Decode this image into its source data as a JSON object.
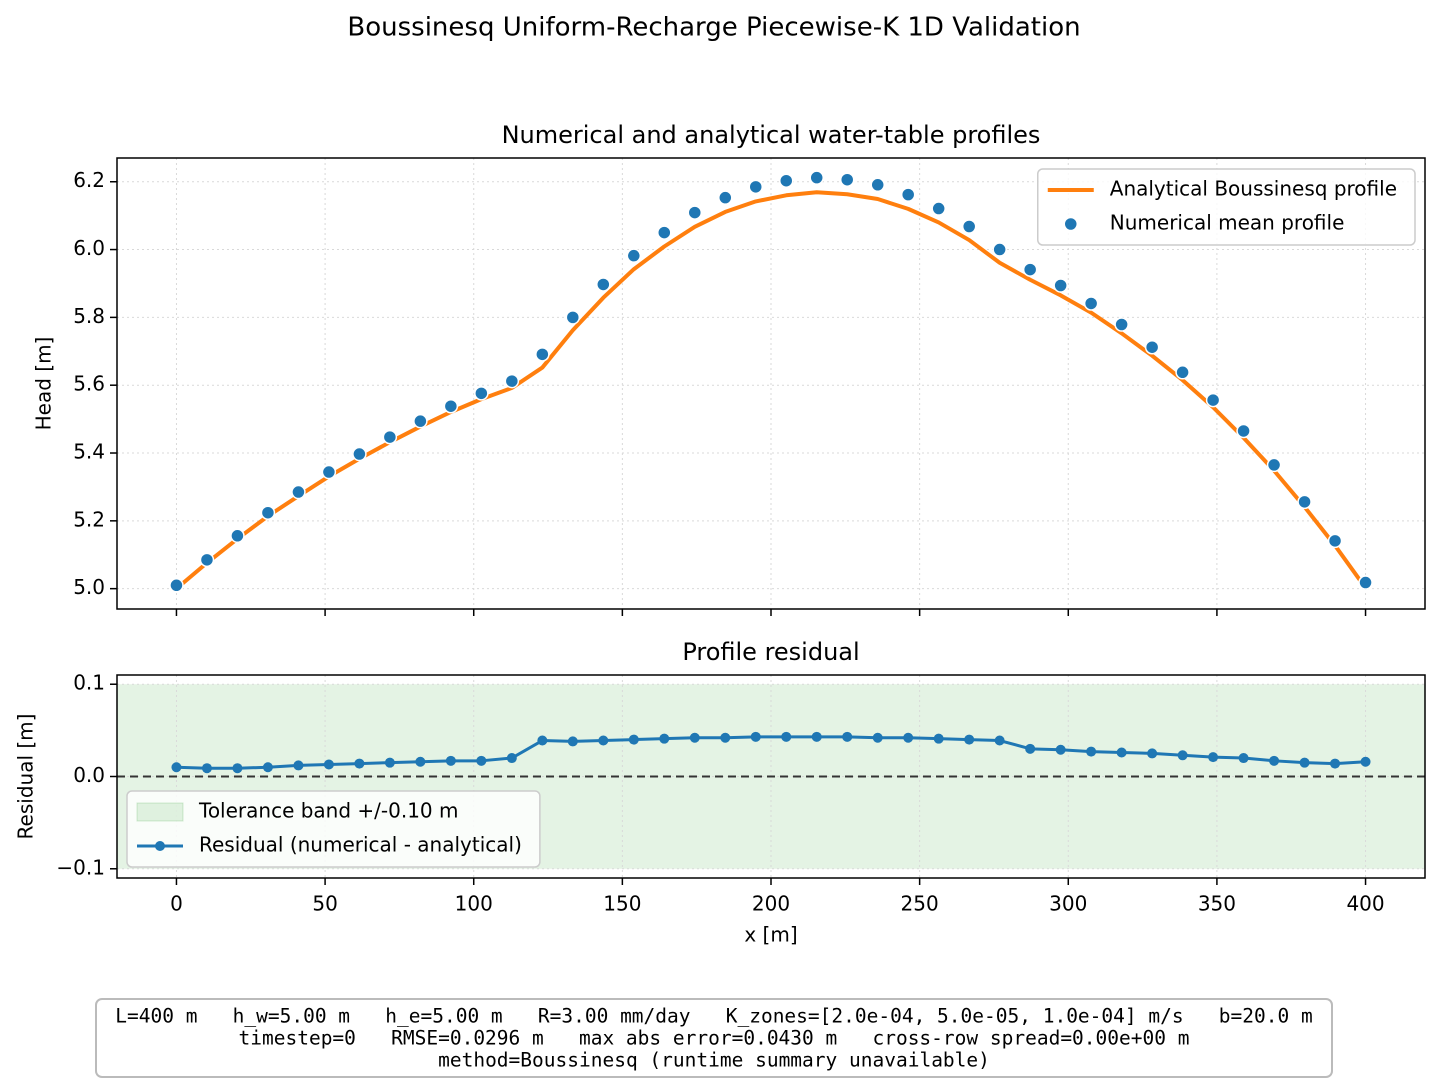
{
  "title": "Boussinesq Uniform-Recharge Piecewise-K 1D Validation",
  "footer_lines": [
    "L=400 m   h_w=5.00 m   h_e=5.00 m   R=3.00 mm/day   K_zones=[2.0e-04, 5.0e-05, 1.0e-04] m/s   b=20.0 m",
    "timestep=0   RMSE=0.0296 m   max abs error=0.0430 m   cross-row spread=0.00e+00 m",
    "method=Boussinesq (runtime summary unavailable)"
  ],
  "chart_data": [
    {
      "type": "line",
      "title": "Numerical and analytical water-table profiles",
      "ylabel": "Head [m]",
      "x": [
        0,
        10.26,
        20.51,
        30.77,
        41.03,
        51.28,
        61.54,
        71.79,
        82.05,
        92.31,
        102.56,
        112.82,
        123.08,
        133.33,
        143.59,
        153.85,
        164.1,
        174.36,
        184.62,
        194.87,
        205.13,
        215.38,
        225.64,
        235.9,
        246.15,
        256.41,
        266.67,
        276.92,
        287.18,
        297.44,
        307.69,
        317.95,
        328.21,
        338.46,
        348.72,
        358.97,
        369.23,
        379.49,
        389.74,
        400
      ],
      "series": [
        {
          "name": "Analytical Boussinesq profile",
          "color": "#ff7f0e",
          "kind": "line",
          "values": [
            5.0,
            5.076,
            5.147,
            5.214,
            5.273,
            5.331,
            5.383,
            5.432,
            5.478,
            5.521,
            5.559,
            5.592,
            5.652,
            5.762,
            5.858,
            5.942,
            6.009,
            6.067,
            6.111,
            6.142,
            6.16,
            6.169,
            6.163,
            6.149,
            6.12,
            6.08,
            6.028,
            5.961,
            5.911,
            5.865,
            5.814,
            5.753,
            5.687,
            5.615,
            5.535,
            5.445,
            5.348,
            5.241,
            5.127,
            5.002
          ]
        },
        {
          "name": "Numerical mean profile",
          "color": "#1f77b4",
          "kind": "scatter",
          "values": [
            5.01,
            5.085,
            5.156,
            5.224,
            5.285,
            5.344,
            5.397,
            5.447,
            5.494,
            5.538,
            5.576,
            5.612,
            5.691,
            5.8,
            5.897,
            5.982,
            6.05,
            6.109,
            6.153,
            6.185,
            6.203,
            6.212,
            6.206,
            6.191,
            6.162,
            6.121,
            6.068,
            6.0,
            5.941,
            5.894,
            5.841,
            5.779,
            5.712,
            5.638,
            5.556,
            5.465,
            5.365,
            5.256,
            5.141,
            5.018
          ]
        }
      ],
      "xlim": [
        -20,
        420
      ],
      "xticks": [
        0,
        50,
        100,
        150,
        200,
        250,
        300,
        350,
        400
      ],
      "xtick_labels": false,
      "ylim": [
        4.94,
        6.27
      ],
      "yticks": [
        {
          "value": 5.0,
          "label": "5.0"
        },
        {
          "value": 5.2,
          "label": "5.2"
        },
        {
          "value": 5.4,
          "label": "5.4"
        },
        {
          "value": 5.6,
          "label": "5.6"
        },
        {
          "value": 5.8,
          "label": "5.8"
        },
        {
          "value": 6.0,
          "label": "6.0"
        },
        {
          "value": 6.2,
          "label": "6.2"
        }
      ],
      "grid": true,
      "legend": "upper right"
    },
    {
      "type": "line",
      "title": "Profile residual",
      "xlabel": "x [m]",
      "ylabel": "Residual [m]",
      "x": [
        0,
        10.26,
        20.51,
        30.77,
        41.03,
        51.28,
        61.54,
        71.79,
        82.05,
        92.31,
        102.56,
        112.82,
        123.08,
        133.33,
        143.59,
        153.85,
        164.1,
        174.36,
        184.62,
        194.87,
        205.13,
        215.38,
        225.64,
        235.9,
        246.15,
        256.41,
        266.67,
        276.92,
        287.18,
        297.44,
        307.69,
        317.95,
        328.21,
        338.46,
        348.72,
        358.97,
        369.23,
        379.49,
        389.74,
        400
      ],
      "band": {
        "name": "Tolerance band +/-0.10 m",
        "value": 0.1,
        "color": "#2ca02c"
      },
      "hline": {
        "value": 0,
        "color": "#333333"
      },
      "series": [
        {
          "name": "Residual (numerical - analytical)",
          "color": "#1f77b4",
          "kind": "line-marker",
          "values": [
            0.01,
            0.009,
            0.009,
            0.01,
            0.012,
            0.013,
            0.014,
            0.015,
            0.016,
            0.017,
            0.017,
            0.02,
            0.039,
            0.038,
            0.039,
            0.04,
            0.041,
            0.042,
            0.042,
            0.043,
            0.043,
            0.043,
            0.043,
            0.042,
            0.042,
            0.041,
            0.04,
            0.039,
            0.03,
            0.029,
            0.027,
            0.026,
            0.025,
            0.023,
            0.021,
            0.02,
            0.017,
            0.015,
            0.014,
            0.016
          ]
        }
      ],
      "xlim": [
        -20,
        420
      ],
      "xticks": [
        0,
        50,
        100,
        150,
        200,
        250,
        300,
        350,
        400
      ],
      "xtick_labels": true,
      "ylim": [
        -0.11,
        0.11
      ],
      "yticks": [
        {
          "value": -0.1,
          "label": "−0.1"
        },
        {
          "value": 0.0,
          "label": "0.0"
        },
        {
          "value": 0.1,
          "label": "0.1"
        }
      ],
      "grid": true,
      "legend": "lower left"
    }
  ]
}
